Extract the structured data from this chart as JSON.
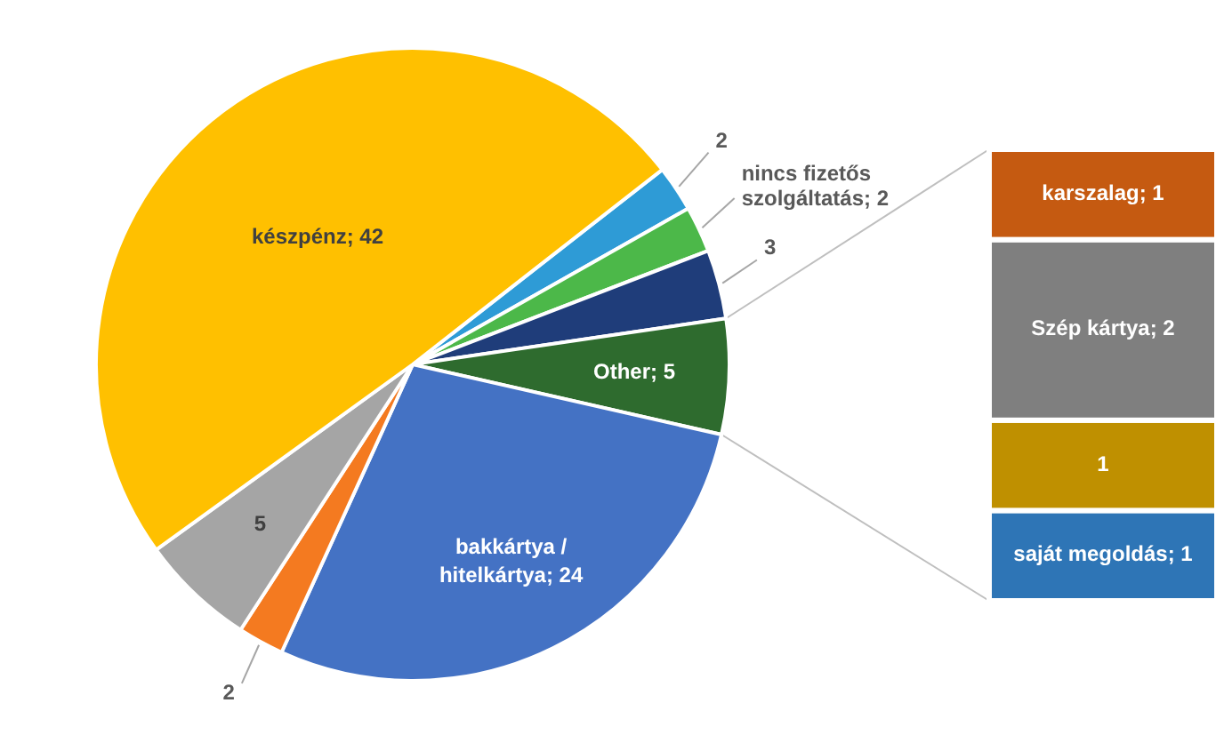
{
  "chart_data": [
    {
      "type": "pie",
      "categories": [
        null,
        "nincs fizetős szolgáltatás",
        null,
        "Other",
        "bakkártya / hitelkártya",
        null,
        null,
        "készpénz"
      ],
      "values": [
        2,
        2,
        3,
        5,
        24,
        2,
        5,
        42
      ],
      "value_labels": [
        "2",
        "; 2",
        "3",
        "; 5",
        "; 24",
        "2",
        "5",
        "; 42"
      ],
      "colors": [
        "#2e9bd6",
        "#4cb849",
        "#1f3d7a",
        "#2e6b2e",
        "#4472c4",
        "#f47a20",
        "#a5a5a5",
        "#ffc000"
      ]
    },
    {
      "type": "bar",
      "stacked": true,
      "categories": [
        null
      ],
      "series": [
        {
          "name": "saját megoldás",
          "color": "#2e75b6",
          "values": [
            1
          ],
          "value_labels": [
            "; 1"
          ]
        },
        {
          "color": "#bf9000",
          "values": [
            1
          ],
          "value_labels": [
            "1"
          ]
        },
        {
          "name": "Szép kártya",
          "color": "#7f7f7f",
          "values": [
            2
          ],
          "value_labels": [
            "; 2"
          ]
        },
        {
          "name": "karszalag",
          "color": "#c55a11",
          "values": [
            1
          ],
          "value_labels": [
            "; 1"
          ]
        }
      ]
    }
  ]
}
